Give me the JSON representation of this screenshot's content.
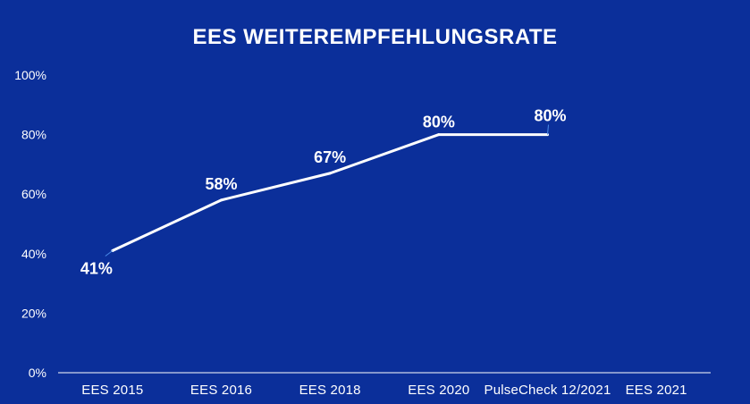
{
  "chart_data": {
    "type": "line",
    "title": "EES WEITEREMPFEHLUNGSRATE",
    "categories": [
      "EES 2015",
      "EES 2016",
      "EES 2018",
      "EES 2020",
      "PulseCheck 12/2021",
      "EES 2021"
    ],
    "series": [
      {
        "values": [
          41,
          58,
          67,
          80,
          80,
          null
        ],
        "data_labels": [
          "41%",
          "58%",
          "67%",
          "80%",
          "80%",
          null
        ]
      }
    ],
    "y_ticks": [
      "0%",
      "20%",
      "40%",
      "60%",
      "80%",
      "100%"
    ],
    "ylim": [
      0,
      100
    ],
    "grid": false,
    "legend": "none",
    "colors": {
      "background": "#0B2F9A",
      "line": "#FFFFFF",
      "text": "#FFFFFF",
      "leader": "#4A8BE8"
    }
  }
}
